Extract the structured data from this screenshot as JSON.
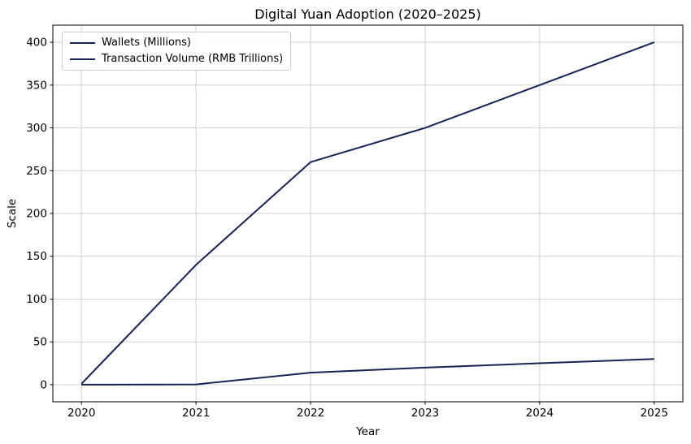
{
  "chart_data": {
    "type": "line",
    "title": "Digital Yuan Adoption (2020–2025)",
    "xlabel": "Year",
    "ylabel": "Scale",
    "x": [
      2020,
      2021,
      2022,
      2023,
      2024,
      2025
    ],
    "series": [
      {
        "name": "Wallets (Millions)",
        "color": "#172354",
        "values": [
          1,
          140,
          260,
          300,
          350,
          400
        ]
      },
      {
        "name": "Transaction Volume (RMB Trillions)",
        "color": "#172354",
        "values": [
          0,
          0.3,
          14,
          20,
          25,
          30
        ]
      }
    ],
    "yticks": [
      0,
      50,
      100,
      150,
      200,
      250,
      300,
      350,
      400
    ],
    "xticks": [
      2020,
      2021,
      2022,
      2023,
      2024,
      2025
    ],
    "ylim": [
      -20,
      420
    ],
    "xlim": [
      2019.75,
      2025.25
    ],
    "grid": true,
    "grid_color": "#cccccc",
    "spine_color": "#000000",
    "tick_label_color": "#000000",
    "line_width": 2,
    "legend_position": "upper-left"
  }
}
